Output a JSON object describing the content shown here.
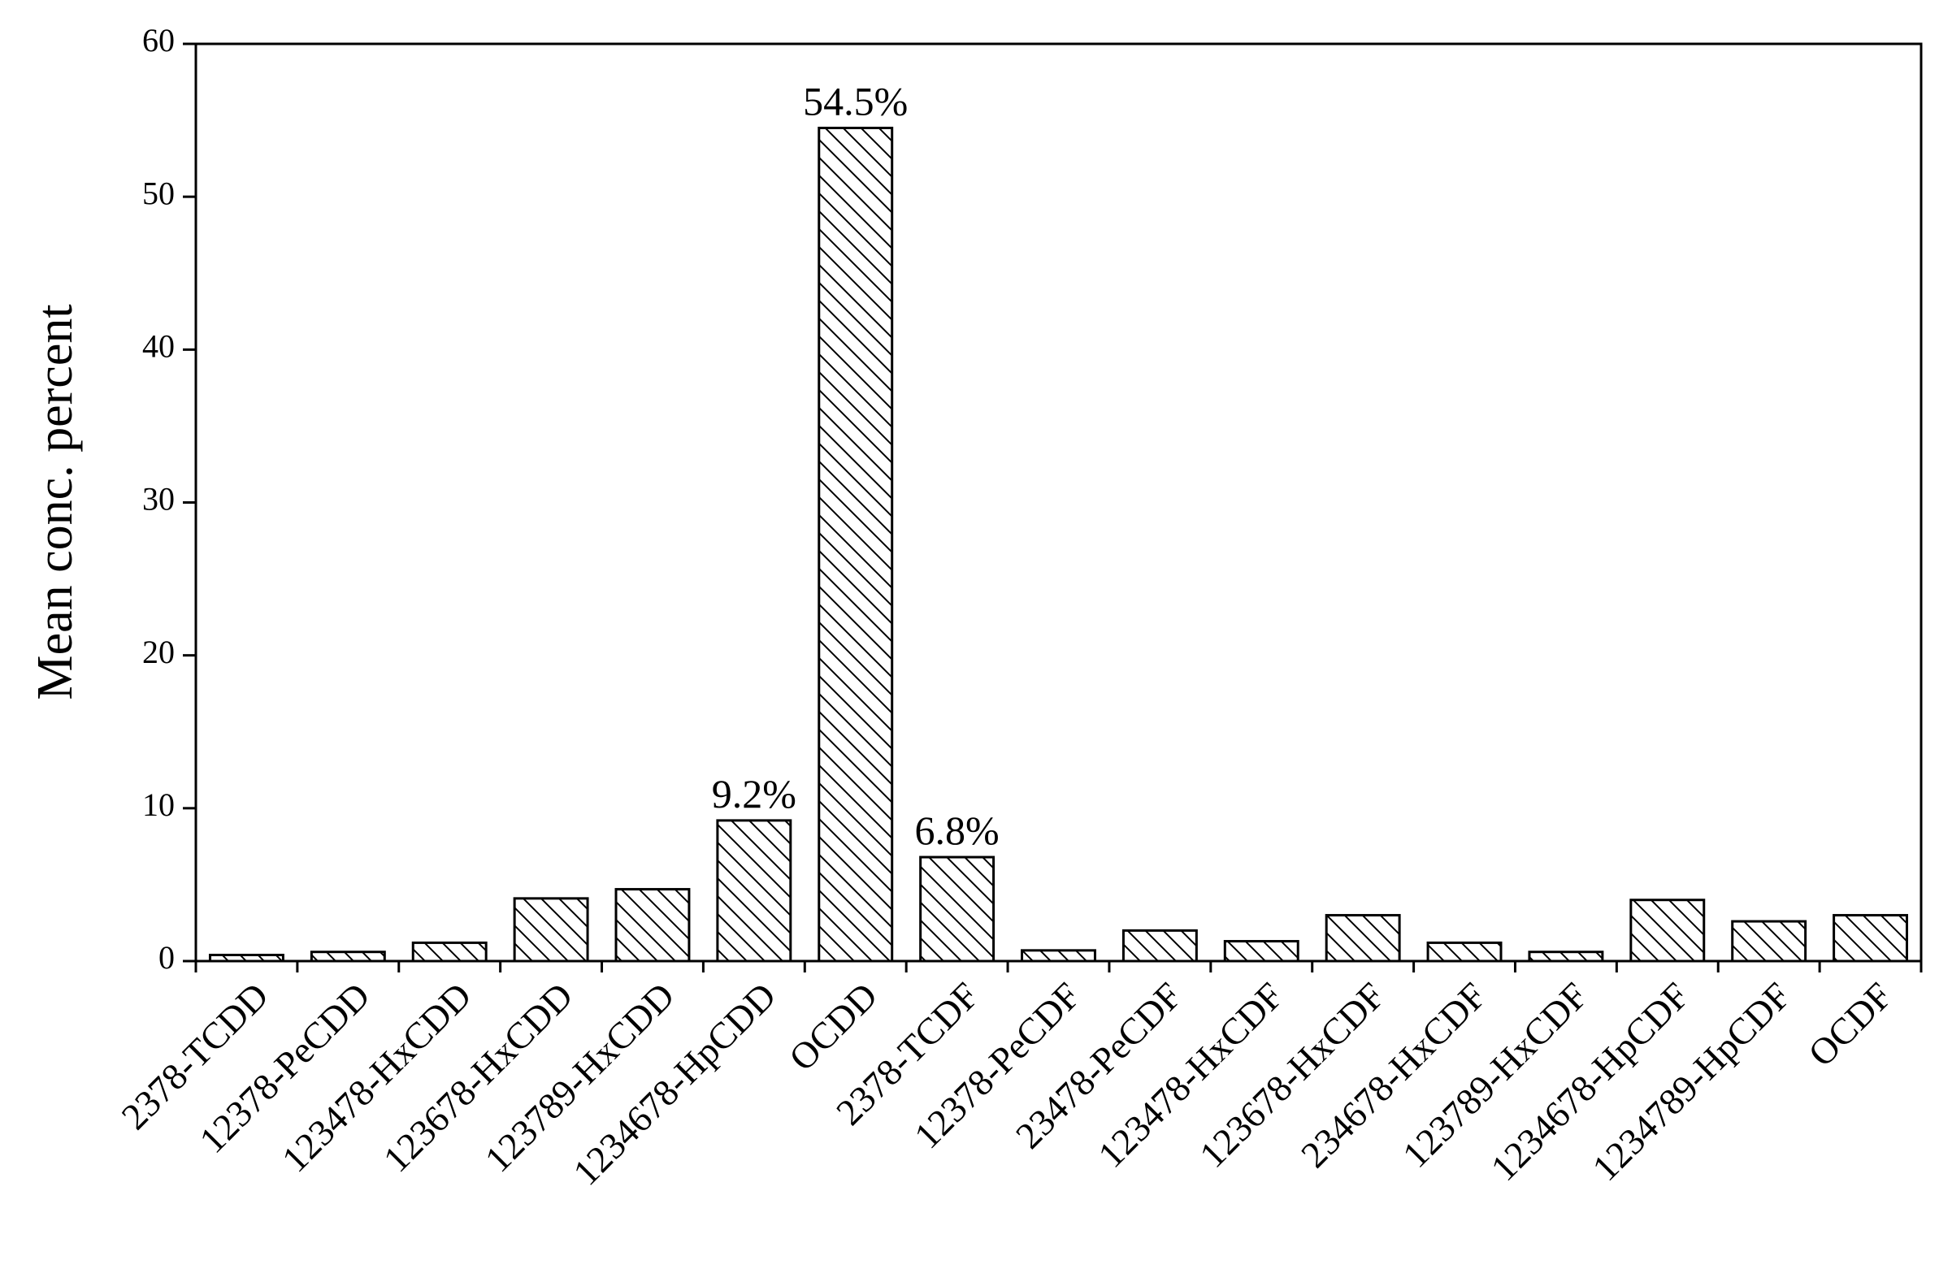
{
  "chart_data": {
    "type": "bar",
    "ylabel": "Mean conc. percent",
    "categories": [
      "2378-TCDD",
      "12378-PeCDD",
      "123478-HxCDD",
      "123678-HxCDD",
      "123789-HxCDD",
      "1234678-HpCDD",
      "OCDD",
      "2378-TCDF",
      "12378-PeCDF",
      "23478-PeCDF",
      "123478-HxCDF",
      "123678-HxCDF",
      "234678-HxCDF",
      "123789-HxCDF",
      "1234678-HpCDF",
      "1234789-HpCDF",
      "OCDF"
    ],
    "values": [
      0.4,
      0.6,
      1.2,
      4.1,
      4.7,
      9.2,
      54.5,
      6.8,
      0.7,
      2.0,
      1.3,
      3.0,
      1.2,
      0.6,
      4.0,
      2.6,
      3.0
    ],
    "value_labels": [
      null,
      null,
      null,
      null,
      null,
      "9.2%",
      "54.5%",
      "6.8%",
      null,
      null,
      null,
      null,
      null,
      null,
      null,
      null,
      null
    ],
    "color": "#000000",
    "ylim": [
      0,
      60
    ],
    "yticks": [
      0,
      10,
      20,
      30,
      40,
      50,
      60
    ]
  }
}
